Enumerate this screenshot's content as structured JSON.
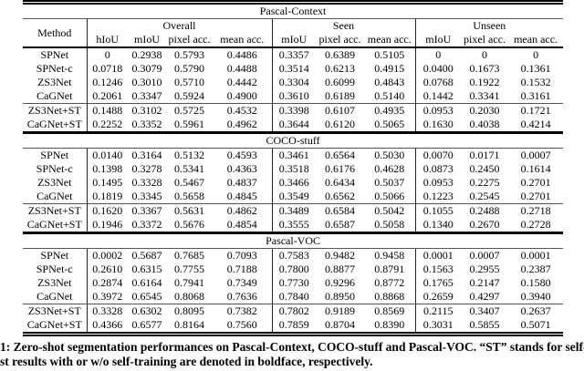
{
  "table": {
    "method_label": "Method",
    "groups": [
      "Overall",
      "Seen",
      "Unseen"
    ],
    "subcols": [
      "hIoU",
      "mIoU",
      "pixel acc.",
      "mean acc.",
      "mIoU",
      "pixel acc.",
      "mean acc.",
      "mIoU",
      "pixel acc.",
      "mean acc."
    ],
    "sections": [
      {
        "title": "Pascal-Context",
        "rows": [
          {
            "method": "SPNet",
            "bold_method": false,
            "values": [
              "0",
              "0.2938",
              "0.5793",
              "0.4486",
              "0.3357",
              "0.6389",
              "0.5105",
              "0",
              "0",
              "0"
            ],
            "bold": [
              5
            ]
          },
          {
            "method": "SPNet-c",
            "bold_method": false,
            "values": [
              "0.0718",
              "0.3079",
              "0.5790",
              "0.4488",
              "0.3514",
              "0.6213",
              "0.4915",
              "0.0400",
              "0.1673",
              "0.1361"
            ],
            "bold": []
          },
          {
            "method": "ZS3Net",
            "bold_method": false,
            "values": [
              "0.1246",
              "0.3010",
              "0.5710",
              "0.4442",
              "0.3304",
              "0.6099",
              "0.4843",
              "0.0768",
              "0.1922",
              "0.1532"
            ],
            "bold": []
          },
          {
            "method": "CaGNet",
            "bold_method": true,
            "values": [
              "0.2061",
              "0.3347",
              "0.5924",
              "0.4900",
              "0.3610",
              "0.6189",
              "0.5140",
              "0.1442",
              "0.3341",
              "0.3161"
            ],
            "bold": [
              0,
              1,
              2,
              3,
              4,
              6,
              7,
              8,
              9
            ]
          },
          {
            "method": "ZS3Net+ST",
            "bold_method": false,
            "values": [
              "0.1488",
              "0.3102",
              "0.5725",
              "0.4532",
              "0.3398",
              "0.6107",
              "0.4935",
              "0.0953",
              "0.2030",
              "0.1721"
            ],
            "bold": []
          },
          {
            "method": "CaGNet+ST",
            "bold_method": true,
            "values": [
              "0.2252",
              "0.3352",
              "0.5961",
              "0.4962",
              "0.3644",
              "0.6120",
              "0.5065",
              "0.1630",
              "0.4038",
              "0.4214"
            ],
            "bold": [
              0,
              1,
              2,
              3,
              4,
              5,
              6,
              7,
              8,
              9
            ]
          }
        ]
      },
      {
        "title": "COCO-stuff",
        "rows": [
          {
            "method": "SPNet",
            "bold_method": false,
            "values": [
              "0.0140",
              "0.3164",
              "0.5132",
              "0.4593",
              "0.3461",
              "0.6564",
              "0.5030",
              "0.0070",
              "0.0171",
              "0.0007"
            ],
            "bold": [
              5
            ]
          },
          {
            "method": "SPNet-c",
            "bold_method": false,
            "values": [
              "0.1398",
              "0.3278",
              "0.5341",
              "0.4363",
              "0.3518",
              "0.6176",
              "0.4628",
              "0.0873",
              "0.2450",
              "0.1614"
            ],
            "bold": []
          },
          {
            "method": "ZS3Net",
            "bold_method": false,
            "values": [
              "0.1495",
              "0.3328",
              "0.5467",
              "0.4837",
              "0.3466",
              "0.6434",
              "0.5037",
              "0.0953",
              "0.2275",
              "0.2701"
            ],
            "bold": []
          },
          {
            "method": "CaGNet",
            "bold_method": true,
            "values": [
              "0.1819",
              "0.3345",
              "0.5658",
              "0.4845",
              "0.3549",
              "0.6562",
              "0.5066",
              "0.1223",
              "0.2545",
              "0.2701"
            ],
            "bold": [
              0,
              1,
              2,
              3,
              4,
              6,
              7,
              8,
              9
            ]
          },
          {
            "method": "ZS3Net+ST",
            "bold_method": false,
            "values": [
              "0.1620",
              "0.3367",
              "0.5631",
              "0.4862",
              "0.3489",
              "0.6584",
              "0.5042",
              "0.1055",
              "0.2488",
              "0.2718"
            ],
            "bold": [
              3
            ]
          },
          {
            "method": "CaGNet+ST",
            "bold_method": true,
            "values": [
              "0.1946",
              "0.3372",
              "0.5676",
              "0.4854",
              "0.3555",
              "0.6587",
              "0.5058",
              "0.1340",
              "0.2670",
              "0.2728"
            ],
            "bold": [
              0,
              1,
              2,
              4,
              5,
              6,
              7,
              8,
              9
            ]
          }
        ]
      },
      {
        "title": "Pascal-VOC",
        "rows": [
          {
            "method": "SPNet",
            "bold_method": false,
            "values": [
              "0.0002",
              "0.5687",
              "0.7685",
              "0.7093",
              "0.7583",
              "0.9482",
              "0.9458",
              "0.0001",
              "0.0007",
              "0.0001"
            ],
            "bold": [
              5,
              6
            ]
          },
          {
            "method": "SPNet-c",
            "bold_method": false,
            "values": [
              "0.2610",
              "0.6315",
              "0.7755",
              "0.7188",
              "0.7800",
              "0.8877",
              "0.8791",
              "0.1563",
              "0.2955",
              "0.2387"
            ],
            "bold": []
          },
          {
            "method": "ZS3Net",
            "bold_method": false,
            "values": [
              "0.2874",
              "0.6164",
              "0.7941",
              "0.7349",
              "0.7730",
              "0.9296",
              "0.8772",
              "0.1765",
              "0.2147",
              "0.1580"
            ],
            "bold": []
          },
          {
            "method": "CaGNet",
            "bold_method": true,
            "values": [
              "0.3972",
              "0.6545",
              "0.8068",
              "0.7636",
              "0.7840",
              "0.8950",
              "0.8868",
              "0.2659",
              "0.4297",
              "0.3940"
            ],
            "bold": [
              0,
              1,
              2,
              3,
              4,
              7,
              8,
              9
            ]
          },
          {
            "method": "ZS3Net+ST",
            "bold_method": false,
            "values": [
              "0.3328",
              "0.6302",
              "0.8095",
              "0.7382",
              "0.7802",
              "0.9189",
              "0.8569",
              "0.2115",
              "0.3407",
              "0.2637"
            ],
            "bold": [
              5,
              6
            ]
          },
          {
            "method": "CaGNet+ST",
            "bold_method": true,
            "values": [
              "0.4366",
              "0.6577",
              "0.8164",
              "0.7560",
              "0.7859",
              "0.8704",
              "0.8390",
              "0.3031",
              "0.5855",
              "0.5071"
            ],
            "bold": [
              0,
              1,
              2,
              3,
              4,
              7,
              8,
              9
            ]
          }
        ]
      }
    ]
  },
  "caption": {
    "line1": "1: Zero-shot segmentation performances on Pascal-Context, COCO-stuff and Pascal-VOC. “ST” stands for self-tra",
    "line2": "st results with or w/o self-training are denoted in boldface, respectively."
  }
}
